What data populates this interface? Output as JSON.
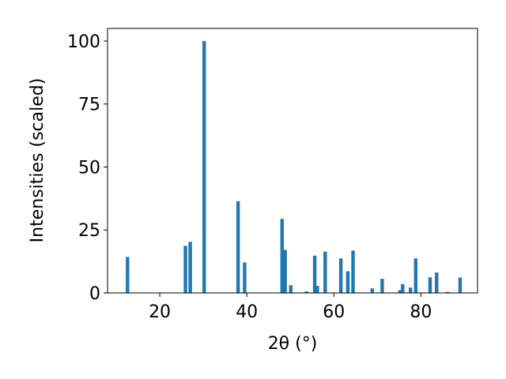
{
  "chart_data": {
    "type": "bar",
    "xlabel": "2θ (°)",
    "ylabel": "Intensities (scaled)",
    "xlim": [
      8,
      93
    ],
    "ylim": [
      0,
      105
    ],
    "xticks": [
      20,
      40,
      60,
      80
    ],
    "yticks": [
      0,
      25,
      50,
      75,
      100
    ],
    "xtick_labels": [
      "20",
      "40",
      "60",
      "80"
    ],
    "ytick_labels": [
      "0",
      "25",
      "50",
      "75",
      "100"
    ],
    "bar_color": "#1f77b4",
    "grid": false,
    "bar_width": 0.8,
    "x": [
      12.6,
      25.9,
      27.0,
      30.2,
      38.0,
      39.5,
      48.1,
      48.8,
      50.1,
      53.7,
      55.6,
      56.2,
      58.0,
      61.6,
      63.2,
      64.4,
      68.8,
      71.1,
      75.2,
      75.8,
      77.6,
      78.8,
      82.1,
      83.6,
      86.1,
      89.0
    ],
    "values": [
      14.3,
      18.7,
      20.3,
      100.0,
      36.4,
      12.1,
      29.4,
      17.1,
      3.1,
      0.6,
      14.8,
      2.8,
      16.4,
      13.7,
      8.6,
      16.8,
      1.8,
      5.6,
      1.1,
      3.5,
      2.1,
      13.7,
      6.2,
      8.1,
      0.4,
      6.1
    ]
  }
}
